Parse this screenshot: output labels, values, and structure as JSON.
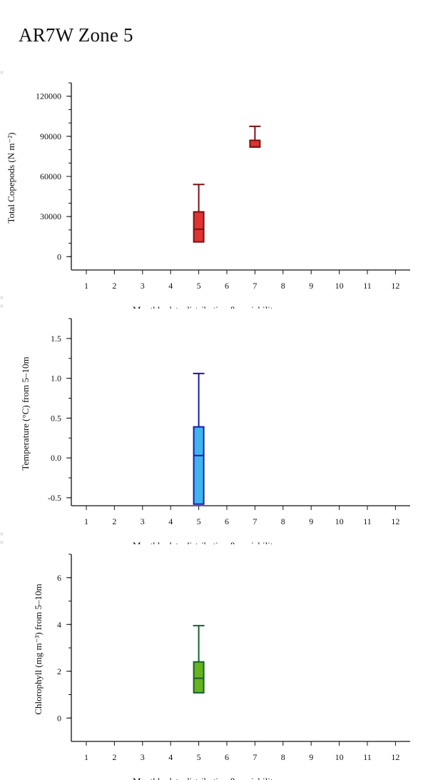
{
  "page": {
    "title": "AR7W Zone 5"
  },
  "chart_data": [
    {
      "type": "boxplot",
      "ylabel": "Total Copepods (N m⁻²)",
      "xlabel": "Monthly data distribution & variability",
      "categories": [
        "1",
        "2",
        "3",
        "4",
        "5",
        "6",
        "7",
        "8",
        "9",
        "10",
        "11",
        "12"
      ],
      "ylim": [
        -10000,
        130000
      ],
      "yticks": [
        0,
        30000,
        60000,
        90000,
        120000
      ],
      "yticks_labels": [
        "0",
        "30000",
        "60000",
        "90000",
        "120000"
      ],
      "yminor_step": 10000,
      "colors": {
        "fill": "#dd3333",
        "stroke": "#7a1212"
      },
      "boxes": [
        {
          "month": 5,
          "whisker_low": 11000,
          "q1": 11000,
          "median": 20500,
          "q3": 33500,
          "whisker_high": 54000
        },
        {
          "month": 7,
          "whisker_low": 82000,
          "q1": 82000,
          "median": 82000,
          "q3": 87000,
          "whisker_high": 97500
        }
      ]
    },
    {
      "type": "boxplot",
      "ylabel": "Temperature (°C) from 5–10m",
      "xlabel": "Monthly data distribution & variability",
      "categories": [
        "1",
        "2",
        "3",
        "4",
        "5",
        "6",
        "7",
        "8",
        "9",
        "10",
        "11",
        "12"
      ],
      "ylim": [
        -0.6,
        1.75
      ],
      "yticks": [
        -0.5,
        0.0,
        0.5,
        1.0,
        1.5
      ],
      "yticks_labels": [
        "-0.5",
        "0.0",
        "0.5",
        "1.0",
        "1.5"
      ],
      "yminor_step": 0.25,
      "colors": {
        "fill": "#3fb5f0",
        "stroke": "#1a1aaa"
      },
      "boxes": [
        {
          "month": 5,
          "whisker_low": -0.58,
          "q1": -0.58,
          "median": 0.03,
          "q3": 0.39,
          "whisker_high": 1.06
        }
      ]
    },
    {
      "type": "boxplot",
      "ylabel": "Chlorophyll (mg m⁻³) from 5–10m",
      "xlabel": "Monthly data distribution & variability",
      "categories": [
        "1",
        "2",
        "3",
        "4",
        "5",
        "6",
        "7",
        "8",
        "9",
        "10",
        "11",
        "12"
      ],
      "ylim": [
        -1.0,
        7.0
      ],
      "yticks": [
        0,
        2,
        4,
        6
      ],
      "yticks_labels": [
        "0",
        "2",
        "4",
        "6"
      ],
      "yminor_step": 1,
      "colors": {
        "fill": "#66b21f",
        "stroke": "#14622a"
      },
      "boxes": [
        {
          "month": 5,
          "whisker_low": 1.08,
          "q1": 1.08,
          "median": 1.7,
          "q3": 2.4,
          "whisker_high": 3.95
        }
      ]
    }
  ]
}
